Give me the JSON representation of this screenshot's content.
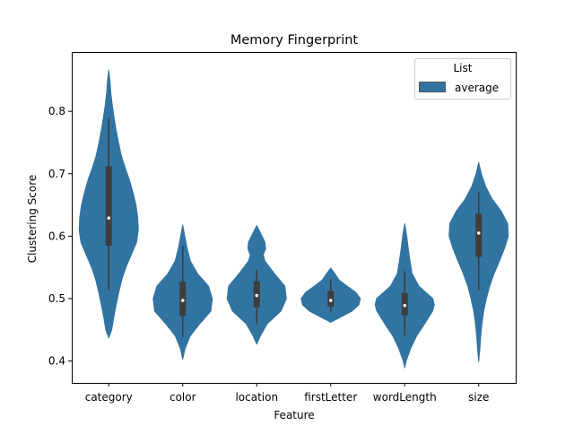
{
  "chart_data": {
    "type": "violin",
    "title": "Memory Fingerprint",
    "xlabel": "Feature",
    "ylabel": "Clustering Score",
    "ylim": [
      0.365,
      0.895
    ],
    "yticks": [
      0.4,
      0.5,
      0.6,
      0.7,
      0.8
    ],
    "ytick_labels": [
      "0.4",
      "0.5",
      "0.6",
      "0.7",
      "0.8"
    ],
    "categories": [
      "category",
      "color",
      "location",
      "firstLetter",
      "wordLength",
      "size"
    ],
    "legend": {
      "title": "List",
      "entries": [
        "average"
      ],
      "placement": "top-right"
    },
    "color": "#3274a1",
    "box_color": "#3d3d3d",
    "series": [
      {
        "name": "average",
        "violins": [
          {
            "category": "category",
            "min": 0.514,
            "q1": 0.585,
            "median": 0.629,
            "q3": 0.712,
            "max": 0.789,
            "profile": [
              [
                0.437,
                0.0
              ],
              [
                0.45,
                0.1
              ],
              [
                0.47,
                0.17
              ],
              [
                0.49,
                0.25
              ],
              [
                0.51,
                0.34
              ],
              [
                0.53,
                0.44
              ],
              [
                0.55,
                0.58
              ],
              [
                0.57,
                0.76
              ],
              [
                0.59,
                0.94
              ],
              [
                0.61,
                1.0
              ],
              [
                0.63,
                0.98
              ],
              [
                0.65,
                0.92
              ],
              [
                0.67,
                0.82
              ],
              [
                0.69,
                0.7
              ],
              [
                0.71,
                0.55
              ],
              [
                0.73,
                0.42
              ],
              [
                0.75,
                0.33
              ],
              [
                0.77,
                0.25
              ],
              [
                0.79,
                0.18
              ],
              [
                0.81,
                0.12
              ],
              [
                0.83,
                0.07
              ],
              [
                0.85,
                0.04
              ],
              [
                0.866,
                0.0
              ]
            ]
          },
          {
            "category": "color",
            "min": 0.439,
            "q1": 0.472,
            "median": 0.497,
            "q3": 0.527,
            "max": 0.585,
            "profile": [
              [
                0.403,
                0.0
              ],
              [
                0.42,
                0.08
              ],
              [
                0.44,
                0.25
              ],
              [
                0.46,
                0.58
              ],
              [
                0.48,
                0.95
              ],
              [
                0.5,
                1.0
              ],
              [
                0.52,
                0.87
              ],
              [
                0.54,
                0.5
              ],
              [
                0.56,
                0.26
              ],
              [
                0.58,
                0.15
              ],
              [
                0.6,
                0.07
              ],
              [
                0.618,
                0.0
              ]
            ]
          },
          {
            "category": "location",
            "min": 0.459,
            "q1": 0.486,
            "median": 0.505,
            "q3": 0.528,
            "max": 0.546,
            "profile": [
              [
                0.427,
                0.0
              ],
              [
                0.44,
                0.12
              ],
              [
                0.46,
                0.36
              ],
              [
                0.48,
                0.82
              ],
              [
                0.5,
                1.0
              ],
              [
                0.52,
                0.95
              ],
              [
                0.54,
                0.6
              ],
              [
                0.56,
                0.28
              ],
              [
                0.57,
                0.22
              ],
              [
                0.58,
                0.3
              ],
              [
                0.59,
                0.28
              ],
              [
                0.6,
                0.18
              ],
              [
                0.617,
                0.0
              ]
            ]
          },
          {
            "category": "firstLetter",
            "min": 0.479,
            "q1": 0.487,
            "median": 0.497,
            "q3": 0.512,
            "max": 0.531,
            "profile": [
              [
                0.462,
                0.0
              ],
              [
                0.47,
                0.32
              ],
              [
                0.48,
                0.72
              ],
              [
                0.49,
                0.95
              ],
              [
                0.5,
                1.0
              ],
              [
                0.51,
                0.85
              ],
              [
                0.52,
                0.55
              ],
              [
                0.53,
                0.28
              ],
              [
                0.54,
                0.14
              ],
              [
                0.549,
                0.0
              ]
            ]
          },
          {
            "category": "wordLength",
            "min": 0.441,
            "q1": 0.473,
            "median": 0.489,
            "q3": 0.509,
            "max": 0.544,
            "profile": [
              [
                0.389,
                0.0
              ],
              [
                0.4,
                0.05
              ],
              [
                0.42,
                0.2
              ],
              [
                0.44,
                0.4
              ],
              [
                0.46,
                0.68
              ],
              [
                0.48,
                0.94
              ],
              [
                0.49,
                1.0
              ],
              [
                0.5,
                0.95
              ],
              [
                0.52,
                0.48
              ],
              [
                0.54,
                0.25
              ],
              [
                0.56,
                0.18
              ],
              [
                0.58,
                0.12
              ],
              [
                0.6,
                0.07
              ],
              [
                0.62,
                0.0
              ]
            ]
          },
          {
            "category": "size",
            "min": 0.514,
            "q1": 0.567,
            "median": 0.605,
            "q3": 0.636,
            "max": 0.67,
            "profile": [
              [
                0.399,
                0.0
              ],
              [
                0.42,
                0.04
              ],
              [
                0.44,
                0.07
              ],
              [
                0.46,
                0.11
              ],
              [
                0.48,
                0.17
              ],
              [
                0.5,
                0.26
              ],
              [
                0.52,
                0.37
              ],
              [
                0.54,
                0.52
              ],
              [
                0.56,
                0.7
              ],
              [
                0.58,
                0.87
              ],
              [
                0.6,
                1.0
              ],
              [
                0.62,
                0.98
              ],
              [
                0.64,
                0.76
              ],
              [
                0.66,
                0.45
              ],
              [
                0.68,
                0.23
              ],
              [
                0.7,
                0.09
              ],
              [
                0.718,
                0.0
              ]
            ]
          }
        ]
      }
    ]
  }
}
